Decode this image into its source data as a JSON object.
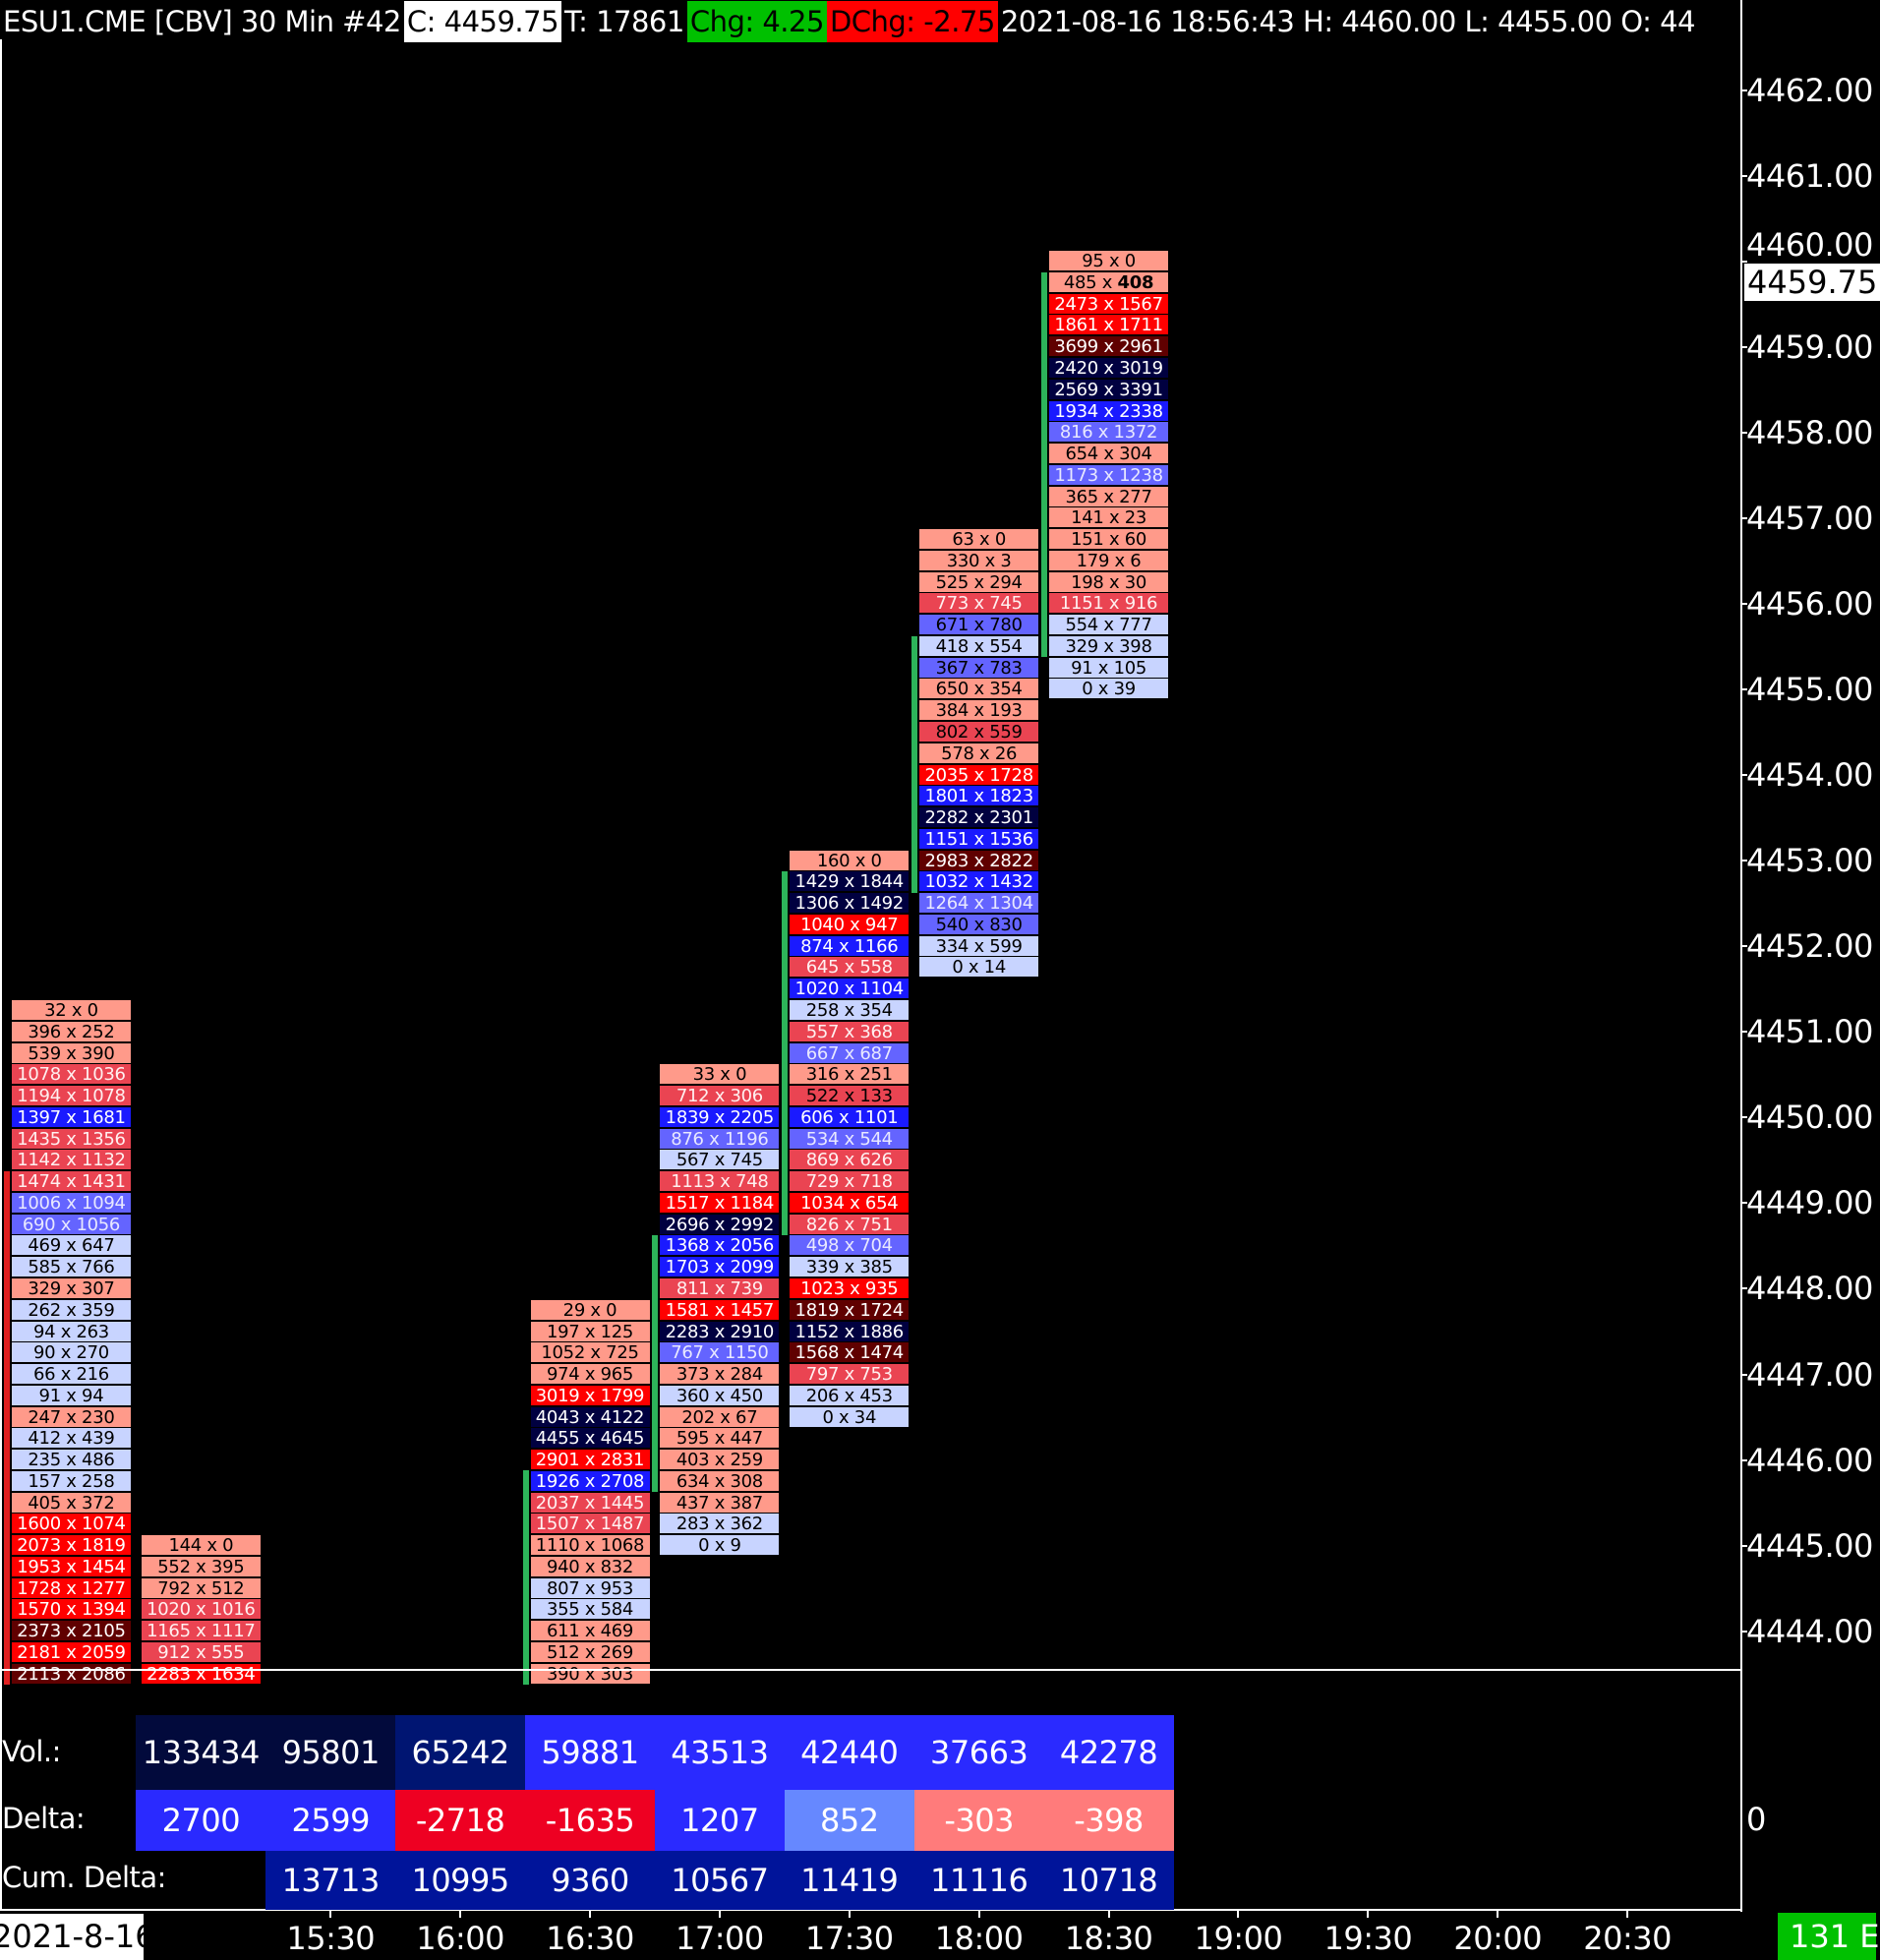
{
  "header": {
    "symbol": "ESU1.CME [CBV]  30 Min   #42",
    "close": "C: 4459.75",
    "ticks": "T: 17861",
    "change": "Chg: 4.25",
    "dchange": "DChg: -2.75",
    "info": "2021-08-16 18:56:43 H: 4460.00 L: 4455.00 O: 44"
  },
  "colors": {
    "sal": "#ff9a8a",
    "mr": "#ea4452",
    "br": "#ff0000",
    "dm": "#600000",
    "dn": "#000040",
    "bb": "#1a1aff",
    "mb": "#6464ff",
    "lb": "#c8d4ff",
    "up_bar": "#2db45a",
    "down_bar": "#e02020"
  },
  "price_axis": {
    "labels": [
      "4462.00",
      "4461.00",
      "4460.00",
      "4459.00",
      "4458.00",
      "4457.00",
      "4456.00",
      "4455.00",
      "4454.00",
      "4453.00",
      "4452.00",
      "4451.00",
      "4450.00",
      "4449.00",
      "4448.00",
      "4447.00",
      "4446.00",
      "4445.00",
      "4444.00"
    ],
    "current_price": "4459.75"
  },
  "columns": [
    {
      "slot": 0,
      "top_price": 4451.25,
      "bar": {
        "color": "down_bar",
        "from": 8,
        "to": 31
      },
      "cells": [
        [
          "32 x 0",
          "sal"
        ],
        [
          "396 x 252",
          "sal"
        ],
        [
          "539 x 390",
          "sal"
        ],
        [
          "1078 x 1036",
          "mr"
        ],
        [
          "1194 x 1078",
          "mr"
        ],
        [
          "1397 x 1681",
          "bb"
        ],
        [
          "1435 x 1356",
          "mr"
        ],
        [
          "1142 x 1132",
          "mr"
        ],
        [
          "1474 x 1431",
          "mr"
        ],
        [
          "1006 x 1094",
          "mb"
        ],
        [
          "690 x 1056",
          "mb"
        ],
        [
          "469 x 647",
          "lb"
        ],
        [
          "585 x 766",
          "lb"
        ],
        [
          "329 x 307",
          "sal"
        ],
        [
          "262 x 359",
          "lb"
        ],
        [
          "94 x 263",
          "lb"
        ],
        [
          "90 x 270",
          "lb"
        ],
        [
          "66 x 216",
          "lb"
        ],
        [
          "91 x 94",
          "lb"
        ],
        [
          "247 x 230",
          "sal"
        ],
        [
          "412 x 439",
          "lb"
        ],
        [
          "235 x 486",
          "lb"
        ],
        [
          "157 x 258",
          "lb"
        ],
        [
          "405 x 372",
          "sal"
        ],
        [
          "1600 x 1074",
          "br"
        ],
        [
          "2073 x 1819",
          "br"
        ],
        [
          "1953 x 1454",
          "br"
        ],
        [
          "1728 x 1277",
          "br"
        ],
        [
          "1570 x 1394",
          "br"
        ],
        [
          "2373 x 2105",
          "dm"
        ],
        [
          "2181 x 2059",
          "br"
        ],
        [
          "2113 x 2086",
          "dm"
        ]
      ]
    },
    {
      "slot": 1,
      "top_price": 4445.0,
      "bar": null,
      "cells": [
        [
          "144 x 0",
          "sal"
        ],
        [
          "552 x 395",
          "sal"
        ],
        [
          "792 x 512",
          "sal"
        ],
        [
          "1020 x 1016",
          "mr"
        ],
        [
          "1165 x 1117",
          "mr"
        ],
        [
          "912 x 555",
          "mr"
        ],
        [
          "2283 x 1634",
          "br"
        ]
      ]
    },
    {
      "slot": 4,
      "top_price": 4447.75,
      "bar": {
        "color": "up_bar",
        "from": 8,
        "to": 17
      },
      "cells": [
        [
          "29 x 0",
          "sal"
        ],
        [
          "197 x 125",
          "sal"
        ],
        [
          "1052 x 725",
          "sal"
        ],
        [
          "974 x 965",
          "sal"
        ],
        [
          "3019 x 1799",
          "br"
        ],
        [
          "4043 x 4122",
          "dn"
        ],
        [
          "4455 x 4645",
          "dn"
        ],
        [
          "2901 x 2831",
          "br"
        ],
        [
          "1926 x 2708",
          "bb"
        ],
        [
          "2037 x 1445",
          "mr"
        ],
        [
          "1507 x 1487",
          "mr"
        ],
        [
          "1110 x 1068",
          "sal"
        ],
        [
          "940 x 832",
          "sal"
        ],
        [
          "807 x 953",
          "lb"
        ],
        [
          "355 x 584",
          "lb"
        ],
        [
          "611 x 469",
          "sal"
        ],
        [
          "512 x 269",
          "sal"
        ],
        [
          "390 x 303",
          "sal"
        ]
      ]
    },
    {
      "slot": 5,
      "top_price": 4450.5,
      "bar": {
        "color": "up_bar",
        "from": 8,
        "to": 19
      },
      "cells": [
        [
          "33 x 0",
          "sal"
        ],
        [
          "712 x 306",
          "mr"
        ],
        [
          "1839 x 2205",
          "bb"
        ],
        [
          "876 x 1196",
          "mb"
        ],
        [
          "567 x 745",
          "lb"
        ],
        [
          "1113 x 748",
          "mr"
        ],
        [
          "1517 x 1184",
          "br"
        ],
        [
          "2696 x 2992",
          "dn"
        ],
        [
          "1368 x 2056",
          "bb"
        ],
        [
          "1703 x 2099",
          "bb"
        ],
        [
          "811 x 739",
          "mr"
        ],
        [
          "1581 x 1457",
          "br"
        ],
        [
          "2283 x 2910",
          "dn"
        ],
        [
          "767 x 1150",
          "mb"
        ],
        [
          "373 x 284",
          "sal"
        ],
        [
          "360 x 450",
          "lb"
        ],
        [
          "202 x 67",
          "sal"
        ],
        [
          "595 x 447",
          "sal"
        ],
        [
          "403 x 259",
          "sal"
        ],
        [
          "634 x 308",
          "sal"
        ],
        [
          "437 x 387",
          "sal"
        ],
        [
          "283 x 362",
          "lb"
        ],
        [
          "0 x 9",
          "lb"
        ]
      ]
    },
    {
      "slot": 6,
      "top_price": 4453.0,
      "bar": {
        "color": "up_bar",
        "from": 1,
        "to": 17
      },
      "cells": [
        [
          "160 x 0",
          "sal"
        ],
        [
          "1429 x 1844",
          "dn"
        ],
        [
          "1306 x 1492",
          "dn"
        ],
        [
          "1040 x 947",
          "br"
        ],
        [
          "874 x 1166",
          "bb"
        ],
        [
          "645 x 558",
          "mr"
        ],
        [
          "1020 x 1104",
          "bb"
        ],
        [
          "258 x 354",
          "lb"
        ],
        [
          "557 x 368",
          "mr"
        ],
        [
          "667 x 687",
          "mb"
        ],
        [
          "316 x 251",
          "sal"
        ],
        [
          "522 x 133",
          "mr dk"
        ],
        [
          "606 x 1101",
          "bb"
        ],
        [
          "534 x 544",
          "mb"
        ],
        [
          "869 x 626",
          "mr"
        ],
        [
          "729 x 718",
          "mr"
        ],
        [
          "1034 x 654",
          "br"
        ],
        [
          "826 x 751",
          "mr"
        ],
        [
          "498 x 704",
          "mb"
        ],
        [
          "339 x 385",
          "lb"
        ],
        [
          "1023 x 935",
          "br"
        ],
        [
          "1819 x 1724",
          "dm"
        ],
        [
          "1152 x 1886",
          "dn"
        ],
        [
          "1568 x 1474",
          "dm"
        ],
        [
          "797 x 753",
          "mr"
        ],
        [
          "206 x 453",
          "lb"
        ],
        [
          "0 x 34",
          "lb"
        ]
      ]
    },
    {
      "slot": 7,
      "top_price": 4456.75,
      "bar": {
        "color": "up_bar",
        "from": 5,
        "to": 16
      },
      "cells": [
        [
          "63 x 0",
          "sal"
        ],
        [
          "330 x 3",
          "sal"
        ],
        [
          "525 x 294",
          "sal"
        ],
        [
          "773 x 745",
          "mr"
        ],
        [
          "671 x 780",
          "mb dk"
        ],
        [
          "418 x 554",
          "lb"
        ],
        [
          "367 x 783",
          "mb dk"
        ],
        [
          "650 x 354",
          "sal"
        ],
        [
          "384 x 193",
          "sal"
        ],
        [
          "802 x 559",
          "mr dk"
        ],
        [
          "578 x 26",
          "sal"
        ],
        [
          "2035 x 1728",
          "br"
        ],
        [
          "1801 x 1823",
          "bb"
        ],
        [
          "2282 x 2301",
          "dn"
        ],
        [
          "1151 x 1536",
          "bb"
        ],
        [
          "2983 x 2822",
          "dm"
        ],
        [
          "1032 x 1432",
          "bb"
        ],
        [
          "1264 x 1304",
          "mb"
        ],
        [
          "540 x 830",
          "mb dk"
        ],
        [
          "334 x 599",
          "lb"
        ],
        [
          "0 x 14",
          "lb"
        ]
      ]
    },
    {
      "slot": 8,
      "top_price": 4460.0,
      "bar": {
        "color": "up_bar",
        "from": 1,
        "to": 18
      },
      "cells": [
        [
          "95 x 0",
          "sal"
        ],
        [
          "485 x 408",
          "sal",
          "bold"
        ],
        [
          "2473 x 1567",
          "br"
        ],
        [
          "1861 x 1711",
          "br"
        ],
        [
          "3699 x 2961",
          "dm"
        ],
        [
          "2420 x 3019",
          "dn"
        ],
        [
          "2569 x 3391",
          "dn"
        ],
        [
          "1934 x 2338",
          "bb"
        ],
        [
          "816 x 1372",
          "mb"
        ],
        [
          "654 x 304",
          "sal"
        ],
        [
          "1173 x 1238",
          "mb"
        ],
        [
          "365 x 277",
          "sal"
        ],
        [
          "141 x 23",
          "sal"
        ],
        [
          "151 x 60",
          "sal"
        ],
        [
          "179 x 6",
          "sal"
        ],
        [
          "198 x 30",
          "sal"
        ],
        [
          "1151 x 916",
          "mr"
        ],
        [
          "554 x 777",
          "lb"
        ],
        [
          "329 x 398",
          "lb"
        ],
        [
          "91 x 105",
          "lb"
        ],
        [
          "0 x 39",
          "lb"
        ]
      ]
    }
  ],
  "stats": {
    "vol_label": "Vol.:",
    "delta_label": "Delta:",
    "cum_label": "Cum. Delta:",
    "delta_zero_label": "0",
    "volume": [
      {
        "slot": 1,
        "v": "133434",
        "bg": "#020a3c"
      },
      {
        "slot": 2,
        "v": "95801",
        "bg": "#020a3c"
      },
      {
        "slot": 3,
        "v": "65242",
        "bg": "#001572"
      },
      {
        "slot": 4,
        "v": "59881",
        "bg": "#2a2aff"
      },
      {
        "slot": 5,
        "v": "43513",
        "bg": "#2a2aff"
      },
      {
        "slot": 6,
        "v": "42440",
        "bg": "#2a2aff"
      },
      {
        "slot": 7,
        "v": "37663",
        "bg": "#2a2aff"
      },
      {
        "slot": 8,
        "v": "42278",
        "bg": "#2a2aff"
      }
    ],
    "delta": [
      {
        "slot": 1,
        "v": "2700",
        "bg": "#2a2aff"
      },
      {
        "slot": 2,
        "v": "2599",
        "bg": "#2a2aff"
      },
      {
        "slot": 3,
        "v": "-2718",
        "bg": "#ee0022"
      },
      {
        "slot": 4,
        "v": "-1635",
        "bg": "#ee0022"
      },
      {
        "slot": 5,
        "v": "1207",
        "bg": "#2a2aff"
      },
      {
        "slot": 6,
        "v": "852",
        "bg": "#6688ff"
      },
      {
        "slot": 7,
        "v": "-303",
        "bg": "#ff7b7b"
      },
      {
        "slot": 8,
        "v": "-398",
        "bg": "#ff7b7b"
      }
    ],
    "cum_delta": [
      {
        "slot": 2,
        "v": "13713",
        "bg": "#00149a"
      },
      {
        "slot": 3,
        "v": "10995",
        "bg": "#00149a"
      },
      {
        "slot": 4,
        "v": "9360",
        "bg": "#00149a"
      },
      {
        "slot": 5,
        "v": "10567",
        "bg": "#00149a"
      },
      {
        "slot": 6,
        "v": "11419",
        "bg": "#00149a"
      },
      {
        "slot": 7,
        "v": "11116",
        "bg": "#00149a"
      },
      {
        "slot": 8,
        "v": "10718",
        "bg": "#00149a"
      }
    ]
  },
  "time_axis": {
    "date": "2021-8-16",
    "labels": [
      "15:30",
      "16:00",
      "16:30",
      "17:00",
      "17:30",
      "18:00",
      "18:30",
      "19:00",
      "19:30",
      "20:00",
      "20:30"
    ],
    "status": "131 E"
  }
}
